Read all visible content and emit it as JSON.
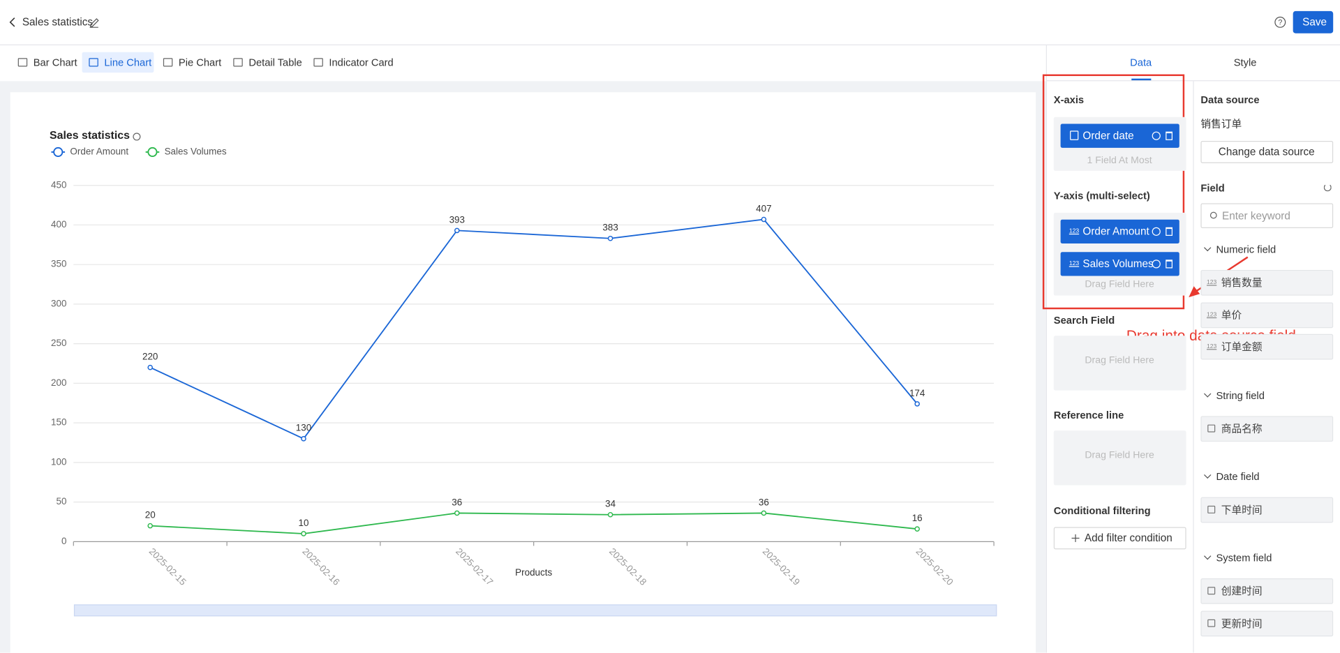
{
  "header": {
    "title": "Sales statistics",
    "save": "Save"
  },
  "tabs": [
    "Bar Chart",
    "Line Chart",
    "Pie Chart",
    "Detail Table",
    "Indicator Card"
  ],
  "panel_tabs": [
    "Data",
    "Style"
  ],
  "config": {
    "x_axis": {
      "title": "X-axis",
      "fields": [
        "Order date"
      ],
      "hint": "1 Field At Most"
    },
    "y_axis": {
      "title": "Y-axis (multi-select)",
      "fields": [
        "Order Amount",
        "Sales Volumes"
      ],
      "hint": "Drag Field Here"
    },
    "search": {
      "title": "Search Field",
      "hint": "Drag Field Here"
    },
    "reference": {
      "title": "Reference line",
      "hint": "Drag Field Here"
    },
    "filter": {
      "title": "Conditional filtering",
      "button": "Add filter condition"
    },
    "numeric_icon": "123"
  },
  "data_source": {
    "title": "Data source",
    "name": "销售订单",
    "button": "Change data source",
    "field_title": "Field",
    "placeholder": "Enter keyword",
    "groups": [
      {
        "name": "Numeric field",
        "items": [
          "销售数量",
          "单价",
          "订单金额"
        ]
      },
      {
        "name": "String field",
        "items": [
          "商品名称"
        ]
      },
      {
        "name": "Date field",
        "items": [
          "下单时间"
        ]
      },
      {
        "name": "System field",
        "items": [
          "创建时间",
          "更新时间"
        ]
      }
    ]
  },
  "annotation": "Drag into data source field",
  "chart_data": {
    "type": "line",
    "title": "Sales statistics",
    "x_label": "Products",
    "categories": [
      "2025-02-15",
      "2025-02-16",
      "2025-02-17",
      "2025-02-18",
      "2025-02-19",
      "2025-02-20"
    ],
    "series": [
      {
        "name": "Order Amount",
        "color": "#1a66d6",
        "values": [
          220,
          130,
          393,
          383,
          407,
          174
        ]
      },
      {
        "name": "Sales Volumes",
        "color": "#2db84d",
        "values": [
          20,
          10,
          36,
          34,
          36,
          16
        ]
      }
    ],
    "ylim": [
      0,
      450
    ],
    "yticks": [
      0,
      50,
      100,
      150,
      200,
      250,
      300,
      350,
      400,
      450
    ],
    "grid": true,
    "legend": "top-left"
  }
}
